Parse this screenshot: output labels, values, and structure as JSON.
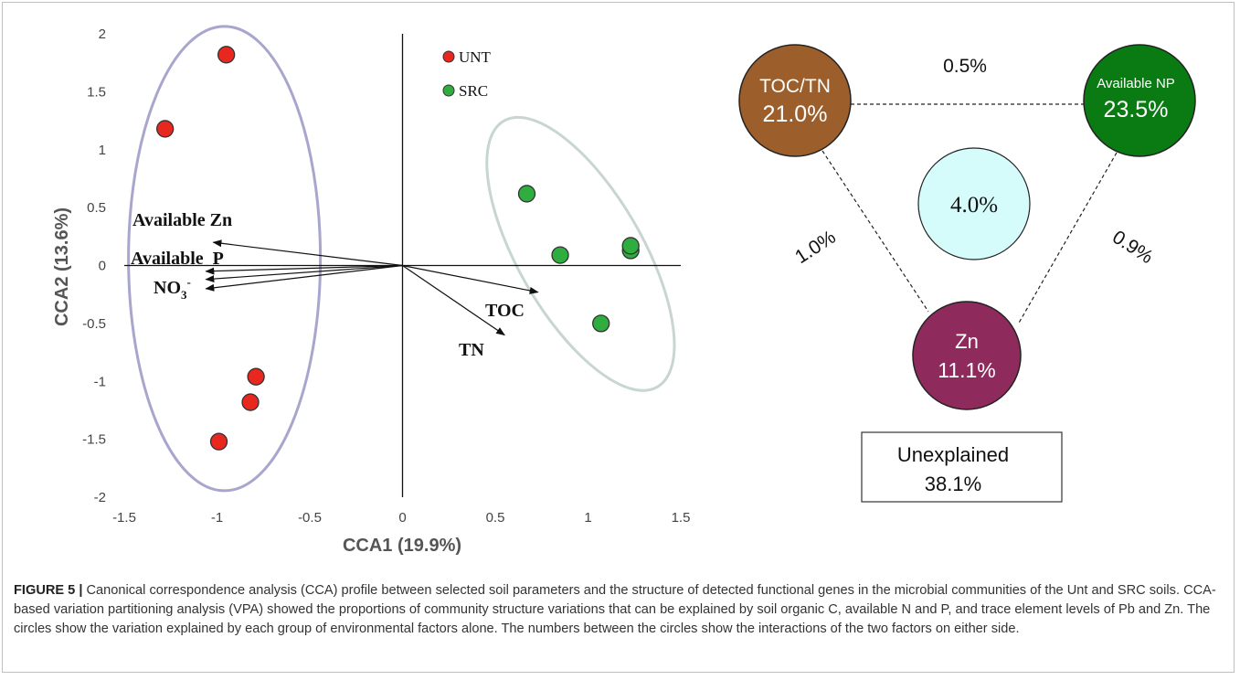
{
  "figure_label": "FIGURE 5 |",
  "caption": "Canonical correspondence analysis (CCA) profile between selected soil parameters and the structure of detected functional genes in the microbial communities of the Unt and SRC soils. CCA-based variation partitioning analysis (VPA) showed the proportions of community structure variations that can be explained by soil organic C, available N and P, and trace element levels of Pb and Zn. The circles show the variation explained by each group of environmental factors alone. The numbers between the circles show the interactions of the two factors on either side.",
  "colors": {
    "unt": "#e8271f",
    "src": "#2fae3f",
    "unt_ellipse": "#a8a6cc",
    "src_ellipse": "#c8d6cf",
    "toc_tn": "#9c5f2c",
    "available_np": "#0a7a12",
    "zn": "#8e2b5c",
    "shared": "#d5fbfb"
  },
  "chart_data": [
    {
      "type": "scatter",
      "xlabel": "CCA1 (19.9%)",
      "ylabel": "CCA2 (13.6%)",
      "xlim": [
        -1.5,
        1.5
      ],
      "ylim": [
        -2,
        2
      ],
      "xticks": [
        "-1.5",
        "-1",
        "-0.5",
        "0",
        "0.5",
        "1",
        "1.5"
      ],
      "yticks": [
        "2",
        "1.5",
        "1",
        "0.5",
        "0",
        "-0.5",
        "-1",
        "-1.5",
        "-2"
      ],
      "legend_position": "top-center",
      "series": [
        {
          "name": "UNT",
          "points": [
            [
              -0.95,
              1.82
            ],
            [
              -1.28,
              1.18
            ],
            [
              -0.79,
              -0.96
            ],
            [
              -0.82,
              -1.18
            ],
            [
              -0.99,
              -1.52
            ]
          ]
        },
        {
          "name": "SRC",
          "points": [
            [
              0.67,
              0.62
            ],
            [
              0.85,
              0.09
            ],
            [
              1.23,
              0.13
            ],
            [
              1.23,
              0.17
            ],
            [
              1.07,
              -0.5
            ]
          ]
        }
      ],
      "vectors": [
        {
          "label": "Available Zn",
          "x": -1.02,
          "y": 0.2
        },
        {
          "label": "Available  P",
          "x": -1.06,
          "y": -0.05
        },
        {
          "label": "NO₃⁻",
          "x": -1.06,
          "y": -0.12
        },
        {
          "label": "NO₃⁻",
          "x": -1.06,
          "y": -0.2
        },
        {
          "label": "TOC",
          "x": 0.73,
          "y": -0.23
        },
        {
          "label": "TN",
          "x": 0.55,
          "y": -0.6
        }
      ],
      "vector_labels": {
        "available_zn": "Available Zn",
        "available_p": "Available  P",
        "no3_base": "NO",
        "no3_sub": "3",
        "no3_sup": "-",
        "toc": "TOC",
        "tn": "TN"
      }
    },
    {
      "type": "diagram",
      "groups": [
        {
          "name": "TOC/TN",
          "value": "21.0%"
        },
        {
          "name": "Available NP",
          "value": "23.5%"
        },
        {
          "name": "Zn",
          "value": "11.1%"
        }
      ],
      "shared_all": "4.0%",
      "interactions": [
        {
          "between": [
            "TOC/TN",
            "Available NP"
          ],
          "value": "0.5%"
        },
        {
          "between": [
            "TOC/TN",
            "Zn"
          ],
          "value": "1.0%"
        },
        {
          "between": [
            "Available NP",
            "Zn"
          ],
          "value": "0.9%"
        }
      ],
      "unexplained_label": "Unexplained",
      "unexplained_value": "38.1%"
    }
  ]
}
